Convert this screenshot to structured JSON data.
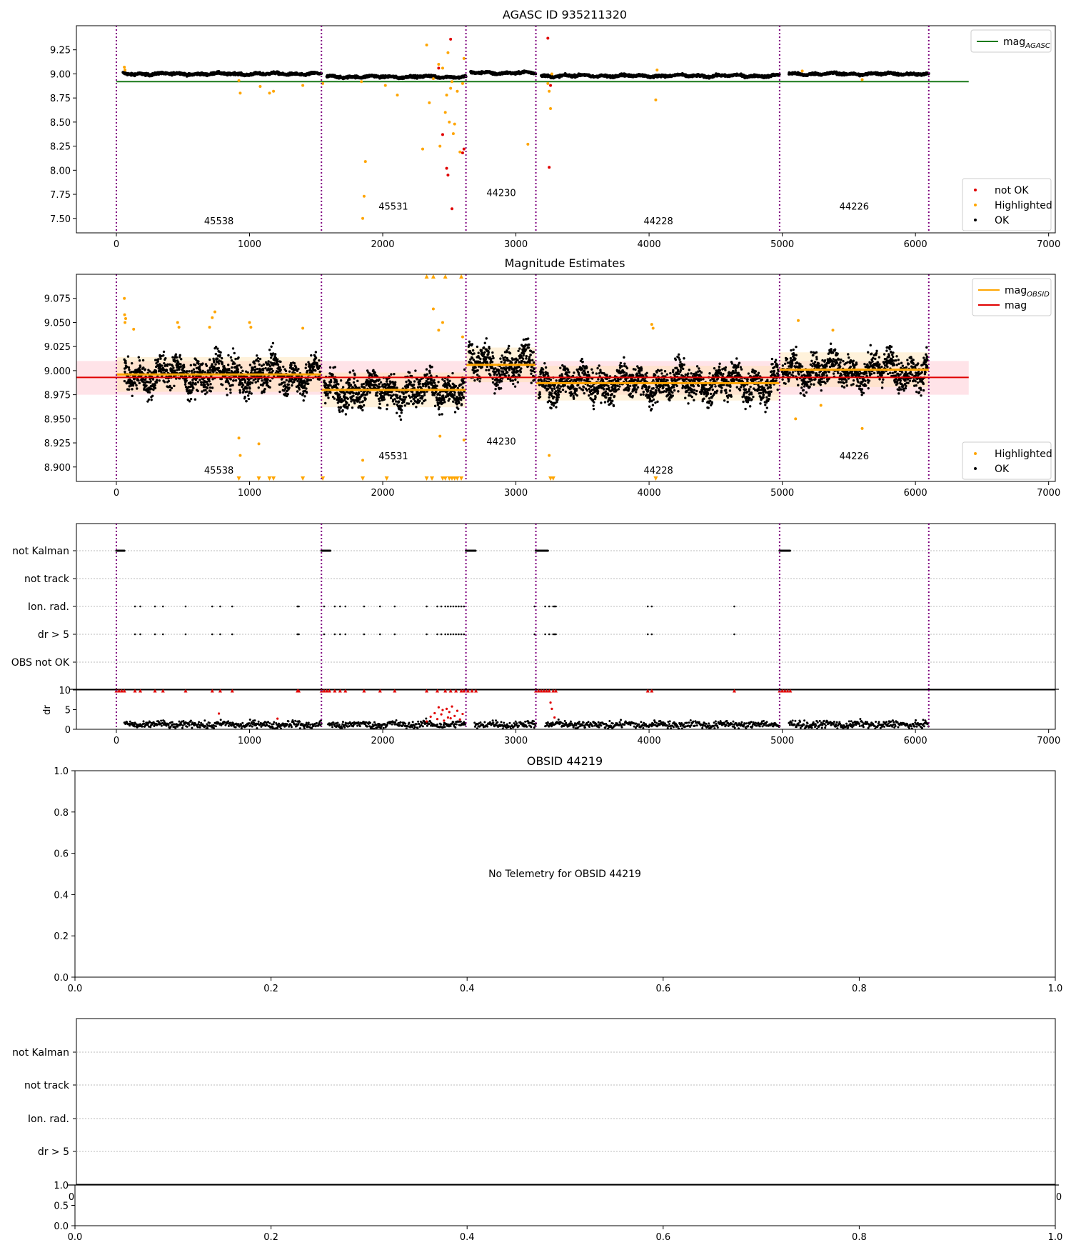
{
  "figure": {
    "title_top": "AGASC ID 935211320",
    "title_mag": "Magnitude Estimates",
    "title_obsid": "OBSID 44219",
    "no_telemetry": "No Telemetry for OBSID 44219"
  },
  "colors": {
    "ok": "#000000",
    "highlighted": "#ffa500",
    "not_ok": "#e00000",
    "mag_agasc": "#1a7a1a",
    "mag_obsid": "#ffa500",
    "mag": "#e00000",
    "obs_boundary": "#800080",
    "band_mag": "#ffc0cb",
    "band_obsid": "#ffe2b0"
  },
  "chart_data": [
    {
      "id": "agasc",
      "type": "scatter",
      "title": "AGASC ID 935211320",
      "xlim": [
        -300,
        7050
      ],
      "ylim": [
        7.35,
        9.5
      ],
      "xticks": [
        0,
        1000,
        2000,
        3000,
        4000,
        5000,
        6000,
        7000
      ],
      "yticks": [
        7.5,
        7.75,
        8.0,
        8.25,
        8.5,
        8.75,
        9.0,
        9.25
      ],
      "ytick_labels": [
        "7.50",
        "7.75",
        "8.00",
        "8.25",
        "8.50",
        "8.75",
        "9.00",
        "9.25"
      ],
      "grid": false,
      "legend_top": {
        "placement": "top-right",
        "entries": [
          {
            "name": "mag",
            "sub": "AGASC",
            "color": "#1a7a1a"
          }
        ]
      },
      "legend_bottom": {
        "placement": "bottom-right",
        "entries": [
          {
            "name": "not OK",
            "color": "#e00000"
          },
          {
            "name": "Highlighted",
            "color": "#ffa500"
          },
          {
            "name": "OK",
            "color": "#000000"
          }
        ]
      },
      "boundaries": [
        0,
        1540,
        2625,
        3150,
        4980,
        6100
      ],
      "obsid_labels": [
        {
          "text": "45538",
          "x": 770,
          "y": 7.44
        },
        {
          "text": "45531",
          "x": 2080,
          "y": 7.59
        },
        {
          "text": "44230",
          "x": 2890,
          "y": 7.73
        },
        {
          "text": "44228",
          "x": 4070,
          "y": 7.44
        },
        {
          "text": "44226",
          "x": 5540,
          "y": 7.59
        }
      ],
      "agasc_line": {
        "y": 8.92,
        "x": [
          0,
          6400
        ]
      },
      "obsid_segments": [
        {
          "x": [
            50,
            1540
          ],
          "mean": 9.0
        },
        {
          "x": [
            1580,
            2625
          ],
          "mean": 8.97
        },
        {
          "x": [
            2660,
            3150
          ],
          "mean": 9.01
        },
        {
          "x": [
            3190,
            4980
          ],
          "mean": 8.98
        },
        {
          "x": [
            5050,
            6100
          ],
          "mean": 9.0
        }
      ],
      "highlighted": [
        [
          60,
          9.07
        ],
        [
          65,
          9.04
        ],
        [
          920,
          8.93
        ],
        [
          930,
          8.8
        ],
        [
          1080,
          8.87
        ],
        [
          1150,
          8.8
        ],
        [
          1180,
          8.82
        ],
        [
          1400,
          8.88
        ],
        [
          1550,
          8.9
        ],
        [
          1840,
          8.92
        ],
        [
          1850,
          7.5
        ],
        [
          1860,
          7.73
        ],
        [
          1870,
          8.09
        ],
        [
          2020,
          8.88
        ],
        [
          2110,
          8.78
        ],
        [
          2300,
          8.22
        ],
        [
          2330,
          9.3
        ],
        [
          2350,
          8.7
        ],
        [
          2380,
          8.95
        ],
        [
          2420,
          9.1
        ],
        [
          2430,
          8.25
        ],
        [
          2450,
          9.06
        ],
        [
          2470,
          8.6
        ],
        [
          2480,
          8.78
        ],
        [
          2490,
          9.22
        ],
        [
          2500,
          8.5
        ],
        [
          2510,
          8.85
        ],
        [
          2520,
          8.92
        ],
        [
          2530,
          8.38
        ],
        [
          2540,
          8.48
        ],
        [
          2560,
          8.82
        ],
        [
          2580,
          8.19
        ],
        [
          2600,
          8.9
        ],
        [
          2610,
          9.16
        ],
        [
          3090,
          8.27
        ],
        [
          3240,
          8.9
        ],
        [
          3250,
          8.82
        ],
        [
          3260,
          8.64
        ],
        [
          3270,
          9.0
        ],
        [
          4050,
          8.73
        ],
        [
          4060,
          9.04
        ],
        [
          5150,
          9.03
        ],
        [
          5600,
          8.94
        ]
      ],
      "not_ok": [
        [
          2420,
          9.06
        ],
        [
          2450,
          8.37
        ],
        [
          2480,
          8.02
        ],
        [
          2490,
          7.95
        ],
        [
          2510,
          9.36
        ],
        [
          2520,
          7.6
        ],
        [
          2600,
          8.18
        ],
        [
          2610,
          8.22
        ],
        [
          3240,
          9.37
        ],
        [
          3250,
          8.03
        ],
        [
          3260,
          8.88
        ]
      ]
    },
    {
      "id": "magnitude",
      "type": "scatter",
      "title": "Magnitude Estimates",
      "xlim": [
        -300,
        7050
      ],
      "ylim": [
        8.885,
        9.1
      ],
      "xticks": [
        0,
        1000,
        2000,
        3000,
        4000,
        5000,
        6000,
        7000
      ],
      "yticks": [
        8.9,
        8.925,
        8.95,
        8.975,
        9.0,
        9.025,
        9.05,
        9.075
      ],
      "ytick_labels": [
        "8.900",
        "8.925",
        "8.950",
        "8.975",
        "9.000",
        "9.025",
        "9.050",
        "9.075"
      ],
      "grid": false,
      "legend_top": {
        "placement": "top-right",
        "entries": [
          {
            "name": "mag",
            "sub": "OBSID",
            "color": "#ffa500"
          },
          {
            "name": "mag",
            "color": "#e00000"
          }
        ]
      },
      "legend_bottom": {
        "placement": "bottom-right",
        "entries": [
          {
            "name": "Highlighted",
            "color": "#ffa500"
          },
          {
            "name": "OK",
            "color": "#000000"
          }
        ]
      },
      "boundaries": [
        0,
        1540,
        2625,
        3150,
        4980,
        6100
      ],
      "obsid_labels": [
        {
          "text": "45538",
          "x": 770,
          "y": 8.893
        },
        {
          "text": "45531",
          "x": 2080,
          "y": 8.908
        },
        {
          "text": "44230",
          "x": 2890,
          "y": 8.923
        },
        {
          "text": "44228",
          "x": 4070,
          "y": 8.893
        },
        {
          "text": "44226",
          "x": 5540,
          "y": 8.908
        }
      ],
      "mag_line": {
        "y": 8.993,
        "x": [
          -300,
          6400
        ],
        "band": [
          8.975,
          9.01
        ]
      },
      "obsid_segments": [
        {
          "x": [
            0,
            1540
          ],
          "mean": 8.996,
          "band": [
            8.978,
            9.014
          ]
        },
        {
          "x": [
            1540,
            2625
          ],
          "mean": 8.98,
          "band": [
            8.962,
            8.998
          ]
        },
        {
          "x": [
            2625,
            3150
          ],
          "mean": 9.006,
          "band": [
            8.988,
            9.024
          ]
        },
        {
          "x": [
            3150,
            4980
          ],
          "mean": 8.987,
          "band": [
            8.969,
            9.005
          ]
        },
        {
          "x": [
            4980,
            6100
          ],
          "mean": 9.001,
          "band": [
            8.983,
            9.019
          ]
        }
      ],
      "highlighted": [
        [
          60,
          9.075
        ],
        [
          62,
          9.058
        ],
        [
          65,
          9.05
        ],
        [
          70,
          9.054
        ],
        [
          130,
          9.043
        ],
        [
          460,
          9.05
        ],
        [
          470,
          9.045
        ],
        [
          700,
          9.045
        ],
        [
          720,
          9.055
        ],
        [
          740,
          9.061
        ],
        [
          920,
          8.93
        ],
        [
          930,
          8.912
        ],
        [
          1000,
          9.05
        ],
        [
          1010,
          9.045
        ],
        [
          1070,
          8.924
        ],
        [
          1400,
          9.044
        ],
        [
          1850,
          8.907
        ],
        [
          2380,
          9.064
        ],
        [
          2420,
          9.042
        ],
        [
          2450,
          9.05
        ],
        [
          2430,
          8.932
        ],
        [
          2600,
          9.035
        ],
        [
          2610,
          8.928
        ],
        [
          3250,
          8.912
        ],
        [
          4020,
          9.048
        ],
        [
          4030,
          9.044
        ],
        [
          5100,
          8.95
        ],
        [
          5120,
          9.052
        ],
        [
          5290,
          8.964
        ],
        [
          5380,
          9.042
        ],
        [
          5600,
          8.94
        ]
      ],
      "tri_down_x": [
        920,
        1070,
        1150,
        1180,
        1400,
        1550,
        1850,
        2030,
        2330,
        2370,
        2450,
        2470,
        2500,
        2520,
        2540,
        2560,
        2590,
        3260,
        3280,
        4050
      ],
      "tri_up_x": [
        2330,
        2380,
        2470,
        2590
      ]
    },
    {
      "id": "flags",
      "type": "scatter",
      "xlim": [
        -300,
        7050
      ],
      "categories": [
        "not Kalman",
        "not track",
        "Ion. rad.",
        "dr > 5",
        "OBS not OK"
      ],
      "boundaries": [
        0,
        1540,
        2625,
        3150,
        4980,
        6100
      ],
      "not_kalman_ranges": [
        [
          0,
          60
        ],
        [
          1540,
          1610
        ],
        [
          2625,
          2700
        ],
        [
          3150,
          3240
        ],
        [
          4980,
          5060
        ]
      ],
      "ion_rad_x": [
        140,
        180,
        290,
        350,
        520,
        720,
        780,
        870,
        1360,
        1370,
        1560,
        1640,
        1680,
        1720,
        1860,
        1980,
        2090,
        2330,
        2410,
        2440,
        2470,
        2490,
        2510,
        2530,
        2550,
        2570,
        2590,
        2610,
        3140,
        3220,
        3250,
        3280,
        3290,
        3300,
        3990,
        4020,
        4640
      ],
      "dr5_x": [
        140,
        180,
        290,
        350,
        520,
        720,
        780,
        870,
        1360,
        1370,
        1560,
        1640,
        1680,
        1720,
        1860,
        1980,
        2090,
        2330,
        2410,
        2440,
        2470,
        2490,
        2510,
        2530,
        2550,
        2570,
        2590,
        2610,
        3140,
        3220,
        3250,
        3280,
        3290,
        3300,
        3990,
        4020,
        4640
      ]
    },
    {
      "id": "dr",
      "type": "scatter",
      "xlim": [
        -300,
        7050
      ],
      "ylim": [
        0,
        10
      ],
      "ylabel": "dr",
      "xticks": [
        0,
        1000,
        2000,
        3000,
        4000,
        5000,
        6000,
        7000
      ],
      "yticks": [
        0,
        5,
        10
      ],
      "boundaries": [
        0,
        1540,
        2625,
        3150,
        4980,
        6100
      ],
      "segments": [
        [
          60,
          1540
        ],
        [
          1590,
          2625
        ],
        [
          2690,
          3150
        ],
        [
          3220,
          4980
        ],
        [
          5050,
          6100
        ]
      ],
      "dr_mean": 1.2
    },
    {
      "id": "obsid",
      "type": "scatter",
      "title": "OBSID 44219",
      "xlim": [
        0,
        1
      ],
      "ylim": [
        0,
        1
      ],
      "xticks": [
        0.0,
        0.2,
        0.4,
        0.6,
        0.8,
        1.0
      ],
      "xtick_labels": [
        "0.0",
        "0.2",
        "0.4",
        "0.6",
        "0.8",
        "1.0"
      ],
      "yticks": [
        0.0,
        0.2,
        0.4,
        0.6,
        0.8,
        1.0
      ],
      "ytick_labels": [
        "0.0",
        "0.2",
        "0.4",
        "0.6",
        "0.8",
        "1.0"
      ],
      "annotation": "No Telemetry for OBSID 44219"
    },
    {
      "id": "obsid_flags",
      "type": "scatter",
      "categories": [
        "not Kalman",
        "not track",
        "Ion. rad.",
        "dr > 5"
      ]
    },
    {
      "id": "obsid_dr",
      "type": "scatter",
      "xlim": [
        0,
        1
      ],
      "ylim": [
        0,
        1
      ],
      "xticks": [
        0.0,
        0.2,
        0.4,
        0.6,
        0.8,
        1.0
      ],
      "xtick_labels": [
        "0.0",
        "0.2",
        "0.4",
        "0.6",
        "0.8",
        "1.0"
      ],
      "yticks": [
        0.0,
        0.5,
        1.0
      ],
      "ytick_labels": [
        "0.0",
        "0.5",
        "1.0"
      ],
      "overlap_left": "0",
      "overlap_right": "0"
    }
  ]
}
